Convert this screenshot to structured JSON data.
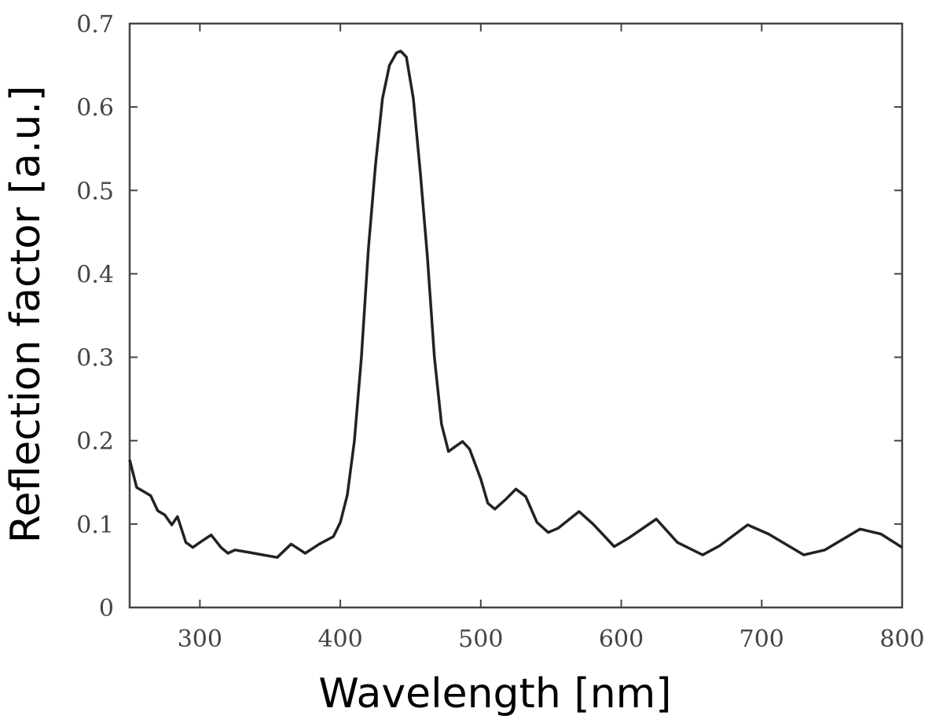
{
  "chart_data": {
    "type": "line",
    "title": "",
    "xlabel": "Wavelength [nm]",
    "ylabel": "Reflection factor [a.u.]",
    "xlim": [
      250,
      800
    ],
    "ylim": [
      0,
      0.7
    ],
    "xticks": [
      300,
      400,
      500,
      600,
      700,
      800
    ],
    "yticks": [
      0,
      0.1,
      0.2,
      0.3,
      0.4,
      0.5,
      0.6,
      0.7
    ],
    "xtick_labels": [
      "300",
      "400",
      "500",
      "600",
      "700",
      "800"
    ],
    "ytick_labels": [
      "0",
      "0.1",
      "0.2",
      "0.3",
      "0.4",
      "0.5",
      "0.6",
      "0.7"
    ],
    "grid": false,
    "line_color": "#222222",
    "series": [
      {
        "x": [
          250,
          255,
          260,
          265,
          270,
          275,
          280,
          284,
          290,
          295,
          300,
          308,
          315,
          320,
          325,
          335,
          345,
          355,
          365,
          375,
          385,
          395,
          400,
          405,
          410,
          415,
          420,
          425,
          430,
          435,
          440,
          443,
          447,
          452,
          457,
          462,
          467,
          472,
          477,
          482,
          487,
          492,
          500,
          505,
          510,
          518,
          525,
          532,
          540,
          548,
          555,
          570,
          580,
          595,
          605,
          625,
          640,
          658,
          670,
          690,
          705,
          730,
          745,
          770,
          785,
          800
        ],
        "y": [
          0.177,
          0.144,
          0.139,
          0.134,
          0.116,
          0.111,
          0.099,
          0.109,
          0.078,
          0.072,
          0.078,
          0.087,
          0.072,
          0.065,
          0.069,
          0.066,
          0.063,
          0.06,
          0.076,
          0.065,
          0.076,
          0.085,
          0.102,
          0.135,
          0.2,
          0.3,
          0.43,
          0.53,
          0.61,
          0.65,
          0.665,
          0.667,
          0.66,
          0.61,
          0.52,
          0.42,
          0.3,
          0.22,
          0.187,
          0.193,
          0.199,
          0.19,
          0.154,
          0.125,
          0.118,
          0.13,
          0.142,
          0.133,
          0.102,
          0.09,
          0.095,
          0.115,
          0.1,
          0.073,
          0.083,
          0.106,
          0.078,
          0.063,
          0.074,
          0.099,
          0.088,
          0.063,
          0.069,
          0.094,
          0.088,
          0.072
        ]
      }
    ]
  }
}
